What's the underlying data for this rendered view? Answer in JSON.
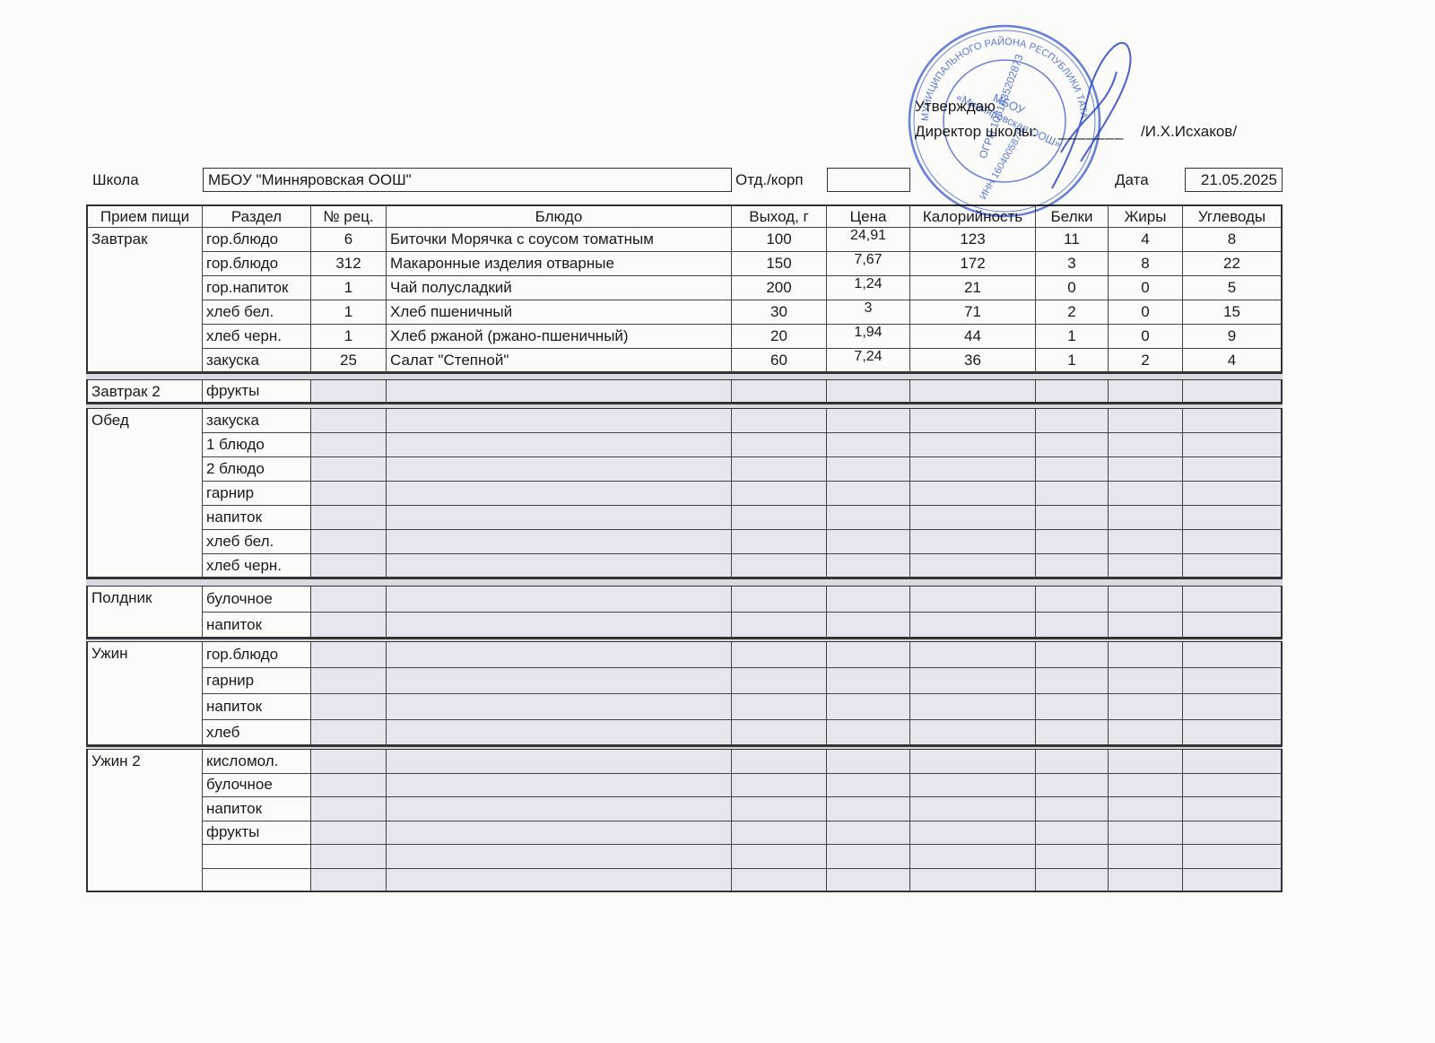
{
  "approval": {
    "title": "Утверждаю",
    "position": "Директор школы:",
    "line": "_______",
    "name": "/И.Х.Исхаков/"
  },
  "stamp": {
    "center": [
      "МБОУ",
      "«Минняровская ООШ»"
    ],
    "ogrn": "ОГРН 1031635202873",
    "inn": "ИНН 1604005878",
    "ring": "МУНИЦИПАЛЬНОГО РАЙОНА РЕСПУБЛИКИ ТАТАРСТАН"
  },
  "header": {
    "school_label": "Школа",
    "school": "МБОУ \"Минняровская ООШ\"",
    "dept_label": "Отд./корп",
    "date_label": "Дата",
    "date": "21.05.2025"
  },
  "table": {
    "columns": [
      "Прием пищи",
      "Раздел",
      "№ рец.",
      "Блюдо",
      "Выход, г",
      "Цена",
      "Калорийность",
      "Белки",
      "Жиры",
      "Углеводы"
    ],
    "groups": [
      {
        "meal": "Завтрак",
        "rows": [
          [
            "гор.блюдо",
            6,
            "Биточки Морячка с соусом томатным",
            100,
            "24,91",
            123,
            11,
            4,
            8
          ],
          [
            "гор.блюдо",
            312,
            "Макаронные изделия отварные",
            150,
            "7,67",
            172,
            3,
            8,
            22
          ],
          [
            "гор.напиток",
            1,
            "Чай полусладкий",
            200,
            "1,24",
            21,
            0,
            0,
            5
          ],
          [
            "хлеб бел.",
            1,
            "Хлеб пшеничный",
            30,
            3,
            71,
            2,
            0,
            15
          ],
          [
            "хлеб черн.",
            1,
            "Хлеб ржаной (ржано-пшеничный)",
            20,
            "1,94",
            44,
            1,
            0,
            9
          ],
          [
            "закуска",
            25,
            "Салат \"Степной\"",
            60,
            "7,24",
            36,
            1,
            2,
            4
          ]
        ]
      },
      {
        "meal": "Завтрак 2",
        "rows": [
          [
            "фрукты"
          ]
        ]
      },
      {
        "meal": "Обед",
        "rows": [
          [
            "закуска"
          ],
          [
            "1 блюдо"
          ],
          [
            "2 блюдо"
          ],
          [
            "гарнир"
          ],
          [
            "напиток"
          ],
          [
            "хлеб бел."
          ],
          [
            "хлеб черн."
          ]
        ]
      },
      {
        "meal": "Полдник",
        "rows": [
          [
            "булочное"
          ],
          [
            "напиток"
          ]
        ]
      },
      {
        "meal": "Ужин",
        "rows": [
          [
            "гор.блюдо"
          ],
          [
            "гарнир"
          ],
          [
            "напиток"
          ],
          [
            "хлеб"
          ]
        ]
      },
      {
        "meal": "Ужин 2",
        "rows": [
          [
            "кисломол."
          ],
          [
            "булочное"
          ],
          [
            "напиток"
          ],
          [
            "фрукты"
          ],
          [],
          []
        ]
      }
    ]
  }
}
